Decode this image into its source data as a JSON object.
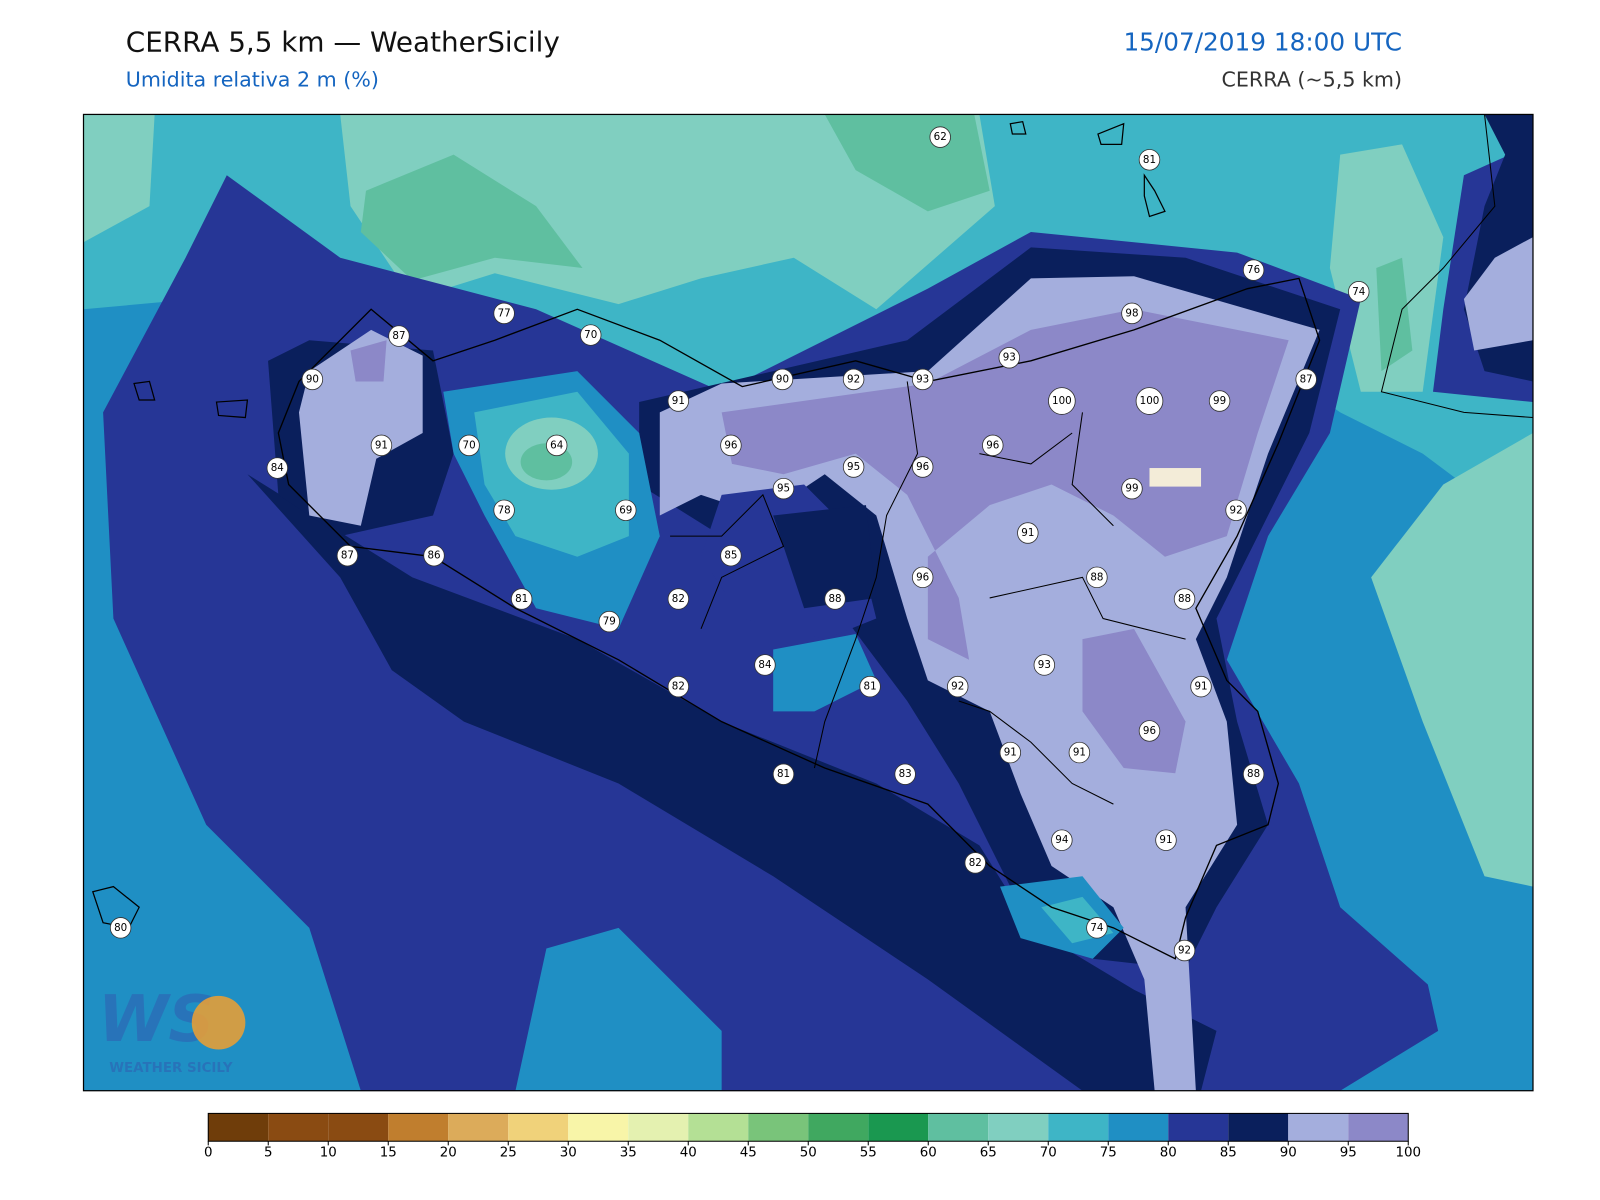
{
  "header": {
    "title": "CERRA 5,5 km — WeatherSicily",
    "subtitle": "Umidita relativa 2 m (%)",
    "datetime": "15/07/2019 18:00 UTC",
    "model": "CERRA (~5,5 km)"
  },
  "map": {
    "stations": [
      62,
      81,
      76,
      74,
      77,
      70,
      87,
      98,
      93,
      90,
      90,
      92,
      93,
      87,
      91,
      100,
      100,
      99,
      91,
      70,
      64,
      96,
      96,
      84,
      95,
      96,
      95,
      99,
      78,
      69,
      92,
      91,
      87,
      86,
      85,
      96,
      88,
      81,
      82,
      88,
      88,
      79,
      93,
      84,
      82,
      81,
      92,
      91,
      96,
      91,
      91,
      88,
      81,
      83,
      94,
      91,
      82,
      74,
      92,
      80
    ]
  },
  "colorbar": {
    "levels": [
      0,
      5,
      10,
      15,
      20,
      25,
      30,
      35,
      40,
      45,
      50,
      55,
      60,
      65,
      70,
      75,
      80,
      85,
      90,
      95,
      100
    ],
    "colors": [
      "#6f3d0a",
      "#8a4b12",
      "#8a4b12",
      "#c07e2e",
      "#dcab5a",
      "#f0d27a",
      "#f8f5a8",
      "#e4f1b0",
      "#b4e095",
      "#79c47a",
      "#40a860",
      "#1a9850",
      "#5fbfa0",
      "#80cfc0",
      "#3eb5c6",
      "#1f8fc4",
      "#263696",
      "#0a1f5c",
      "#a4aedd",
      "#8c88c8"
    ]
  },
  "logo": {
    "mark": "WS",
    "text": "WEATHER SICILY"
  }
}
